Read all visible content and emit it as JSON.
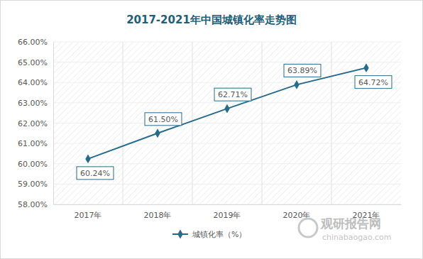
{
  "chart_data": {
    "type": "line",
    "title": "2017-2021年中国城镇化率走势图",
    "categories": [
      "2017年",
      "2018年",
      "2019年",
      "2020年",
      "2021年"
    ],
    "series": [
      {
        "name": "城镇化率（%）",
        "color": "#256b8c",
        "marker": "diamond",
        "line_style": "solid",
        "values": [
          60.24,
          61.5,
          62.71,
          63.89,
          64.72
        ],
        "value_labels": [
          "60.24%",
          "61.50%",
          "62.71%",
          "63.89%",
          "64.72%"
        ]
      }
    ],
    "ylim": [
      58,
      66
    ],
    "yticks": [
      {
        "value": 58,
        "label": "58.00%"
      },
      {
        "value": 59,
        "label": "59.00%"
      },
      {
        "value": 60,
        "label": "60.00%"
      },
      {
        "value": 61,
        "label": "61.00%"
      },
      {
        "value": 62,
        "label": "62.00%"
      },
      {
        "value": 63,
        "label": "63.00%"
      },
      {
        "value": 64,
        "label": "64.00%"
      },
      {
        "value": 65,
        "label": "65.00%"
      },
      {
        "value": 66,
        "label": "66.00%"
      }
    ],
    "grid": true,
    "data_labels": true,
    "legend": "bottom",
    "annotations": [
      "观研报告网",
      "chinabaogao.com"
    ]
  }
}
